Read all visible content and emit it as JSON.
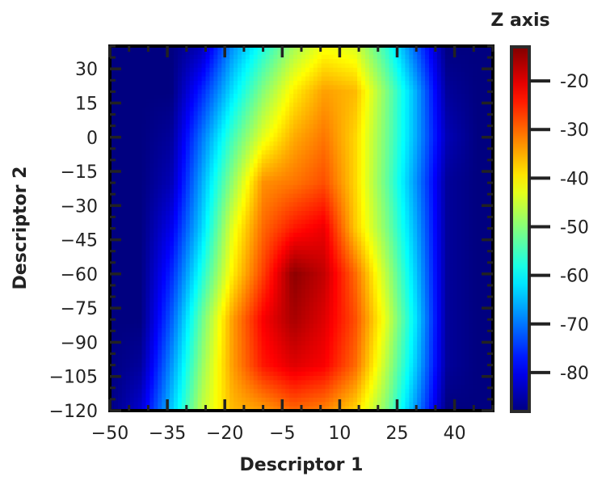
{
  "chart_data": {
    "type": "heatmap",
    "title": "",
    "xlabel": "Descriptor 1",
    "ylabel": "Descriptor 2",
    "xlim": [
      -50,
      50
    ],
    "ylim": [
      -120,
      40
    ],
    "x_ticks": [
      -50,
      -35,
      -20,
      -5,
      10,
      25,
      40
    ],
    "x_tick_labels": [
      "−50",
      "−35",
      "−20",
      "−5",
      "10",
      "25",
      "40"
    ],
    "y_ticks": [
      -120,
      -105,
      -90,
      -75,
      -60,
      -45,
      -30,
      -15,
      0,
      15,
      30
    ],
    "y_tick_labels": [
      "−120",
      "−105",
      "−90",
      "−75",
      "−60",
      "−45",
      "−30",
      "−15",
      "0",
      "15",
      "30"
    ],
    "colorbar": {
      "title": "Z axis",
      "colormap": "jet",
      "range": [
        -88,
        -13
      ],
      "ticks": [
        -80,
        -70,
        -60,
        -50,
        -40,
        -30,
        -20
      ],
      "tick_labels": [
        "-80",
        "-70",
        "-60",
        "-50",
        "-40",
        "-30",
        "-20"
      ]
    },
    "grid_x": [
      -50,
      -42,
      -34,
      -26,
      -18,
      -10,
      -2,
      6,
      14,
      22,
      30,
      38,
      46
    ],
    "grid_y": [
      40,
      20,
      0,
      -20,
      -40,
      -60,
      -80,
      -100,
      -120
    ],
    "z_values": [
      [
        -88,
        -88,
        -88,
        -84,
        -68,
        -58,
        -48,
        -42,
        -44,
        -56,
        -72,
        -88,
        -88
      ],
      [
        -88,
        -88,
        -88,
        -76,
        -62,
        -50,
        -40,
        -34,
        -36,
        -50,
        -66,
        -86,
        -88
      ],
      [
        -88,
        -88,
        -86,
        -70,
        -55,
        -43,
        -35,
        -31,
        -38,
        -51,
        -66,
        -84,
        -88
      ],
      [
        -88,
        -88,
        -84,
        -66,
        -49,
        -33,
        -31,
        -28,
        -38,
        -52,
        -68,
        -86,
        -88
      ],
      [
        -88,
        -88,
        -80,
        -63,
        -43,
        -30,
        -24,
        -21,
        -37,
        -50,
        -66,
        -86,
        -88
      ],
      [
        -88,
        -88,
        -76,
        -58,
        -40,
        -27,
        -14,
        -18,
        -30,
        -46,
        -64,
        -86,
        -88
      ],
      [
        -88,
        -88,
        -72,
        -52,
        -34,
        -22,
        -16,
        -20,
        -28,
        -43,
        -62,
        -86,
        -88
      ],
      [
        -88,
        -86,
        -68,
        -49,
        -34,
        -24,
        -20,
        -22,
        -30,
        -46,
        -64,
        -86,
        -88
      ],
      [
        -88,
        -82,
        -64,
        -46,
        -36,
        -34,
        -30,
        -32,
        -38,
        -50,
        -68,
        -88,
        -88
      ]
    ]
  }
}
